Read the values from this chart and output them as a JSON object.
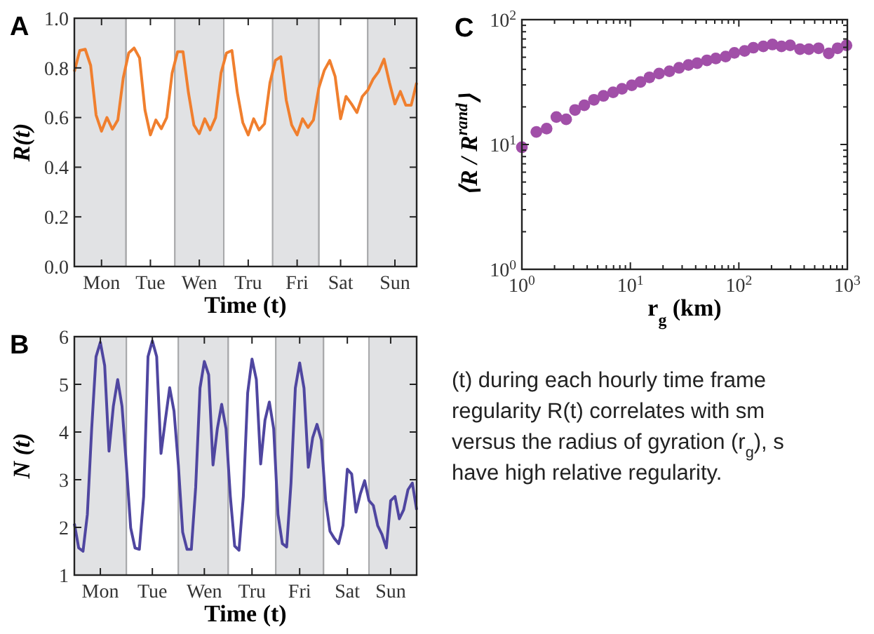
{
  "chart_data": [
    {
      "type": "line",
      "title": "A",
      "xlabel": "Time (t)",
      "ylabel": "R(t)",
      "color": "#f07f2e",
      "line_style": "solid",
      "categories": [
        null,
        null,
        null,
        null,
        null,
        "Mon",
        null,
        null,
        null,
        null,
        null,
        null,
        null,
        null,
        "Tue",
        null,
        null,
        null,
        null,
        null,
        null,
        null,
        null,
        "Wen",
        null,
        null,
        null,
        null,
        null,
        null,
        null,
        null,
        "Tru",
        null,
        null,
        null,
        null,
        null,
        null,
        null,
        null,
        "Fri",
        null,
        null,
        null,
        null,
        null,
        null,
        null,
        "Sat",
        null,
        null,
        null,
        null,
        null,
        null,
        null,
        null,
        null,
        "Sun",
        null,
        null,
        null,
        null
      ],
      "values": [
        0.785,
        0.87,
        0.875,
        0.81,
        0.61,
        0.545,
        0.6,
        0.553,
        0.59,
        0.76,
        0.86,
        0.88,
        0.84,
        0.63,
        0.53,
        0.59,
        0.555,
        0.6,
        0.78,
        0.865,
        0.865,
        0.7,
        0.57,
        0.535,
        0.595,
        0.55,
        0.6,
        0.78,
        0.86,
        0.87,
        0.7,
        0.58,
        0.53,
        0.595,
        0.55,
        0.575,
        0.74,
        0.83,
        0.845,
        0.67,
        0.57,
        0.53,
        0.595,
        0.56,
        0.59,
        0.72,
        0.79,
        0.83,
        0.765,
        0.595,
        0.685,
        0.655,
        0.62,
        0.685,
        0.71,
        0.755,
        0.785,
        0.835,
        0.74,
        0.655,
        0.705,
        0.65,
        0.65,
        0.74
      ],
      "ylim": [
        0,
        1
      ],
      "yticks": [
        {
          "value": 0,
          "label": "0.0"
        },
        0.2,
        0.4,
        0.6,
        0.8,
        {
          "value": 1,
          "label": "1.0"
        }
      ]
    },
    {
      "type": "line",
      "title": "B",
      "xlabel": "Time (t)",
      "ylabel": "N (t)",
      "color": "#4f46a0",
      "line_style": "solid",
      "categories": [
        null,
        null,
        null,
        null,
        null,
        null,
        "Mon",
        null,
        null,
        null,
        null,
        null,
        null,
        null,
        null,
        null,
        null,
        null,
        "Tue",
        null,
        null,
        null,
        null,
        null,
        null,
        null,
        null,
        null,
        null,
        null,
        "Wen",
        null,
        null,
        null,
        null,
        null,
        null,
        null,
        null,
        null,
        null,
        "Tru",
        null,
        null,
        null,
        null,
        null,
        null,
        null,
        null,
        null,
        null,
        "Fri",
        null,
        null,
        null,
        null,
        null,
        null,
        null,
        null,
        null,
        null,
        "Sat",
        null,
        null,
        null,
        null,
        null,
        null,
        null,
        null,
        null,
        "Sun",
        null,
        null,
        null,
        null,
        null,
        null
      ],
      "values": [
        2.08,
        1.57,
        1.5,
        2.27,
        4.07,
        5.58,
        5.88,
        5.39,
        3.6,
        4.54,
        5.1,
        4.54,
        3.31,
        1.99,
        1.57,
        1.54,
        2.65,
        5.58,
        5.91,
        5.58,
        3.55,
        4.25,
        4.93,
        4.44,
        3.31,
        1.9,
        1.54,
        1.54,
        2.84,
        4.92,
        5.48,
        5.2,
        3.31,
        4.07,
        4.58,
        4.07,
        2.65,
        1.61,
        1.52,
        2.65,
        4.82,
        5.53,
        5.1,
        3.33,
        4.25,
        4.63,
        4.07,
        2.27,
        1.66,
        1.59,
        2.93,
        4.92,
        5.45,
        4.92,
        3.26,
        3.88,
        4.16,
        3.83,
        2.56,
        1.92,
        1.77,
        1.66,
        2.04,
        3.22,
        3.12,
        2.32,
        2.7,
        2.98,
        2.56,
        2.46,
        2.04,
        1.85,
        1.57,
        2.56,
        2.65,
        2.18,
        2.37,
        2.79,
        2.93,
        2.37
      ],
      "ylim": [
        1,
        6
      ],
      "yticks": [
        1,
        2,
        3,
        4,
        5,
        6
      ]
    },
    {
      "type": "scatter",
      "title": "C",
      "xlabel": "r$_{g}$ (km)",
      "ylabel": "⟨R / R$^{rand}$⟩",
      "color": "#a14fa8",
      "marker": "circle",
      "log": "xy",
      "x": [
        1,
        1.36,
        1.69,
        2.08,
        2.56,
        3.09,
        3.76,
        4.62,
        5.64,
        6.93,
        8.37,
        10.3,
        12.4,
        15,
        18.4,
        22.9,
        28.1,
        34.3,
        41.3,
        50.8,
        61.4,
        75.5,
        91,
        113,
        136,
        168,
        204,
        247,
        297,
        366,
        442,
        543,
        674,
        813,
        982
      ],
      "values": [
        9.5,
        12.6,
        13.4,
        16.6,
        15.9,
        18.9,
        20.6,
        22.8,
        24.5,
        26.2,
        27.9,
        29.8,
        31.7,
        34.5,
        37,
        38.6,
        41.1,
        43.3,
        44.8,
        47.2,
        48.9,
        50.6,
        54.2,
        56.1,
        59.6,
        61.1,
        63.2,
        61.1,
        62.2,
        58,
        58,
        59,
        53.7,
        59,
        62.2
      ],
      "xlim": [
        1,
        1000
      ],
      "xticks": [
        {
          "value": 1,
          "label": "10$^{0}$"
        },
        {
          "value": 10,
          "label": "10$^{1}$"
        },
        {
          "value": 100,
          "label": "10$^{2}$"
        },
        {
          "value": 1000,
          "label": "10$^{3}$"
        }
      ],
      "ylim": [
        1,
        100
      ],
      "yticks": [
        {
          "value": 1,
          "label": "10$^{0}$"
        },
        {
          "value": 10,
          "label": "10$^{1}$"
        },
        {
          "value": 100,
          "label": "10$^{2}$"
        }
      ]
    },
    {
      "type": "other",
      "annotations": [
        "(t) during each hourly time frame",
        "regularity R(t) correlates with sm",
        "versus the radius of gyration (r$_{g}$), s",
        "have high relative regularity."
      ]
    }
  ]
}
